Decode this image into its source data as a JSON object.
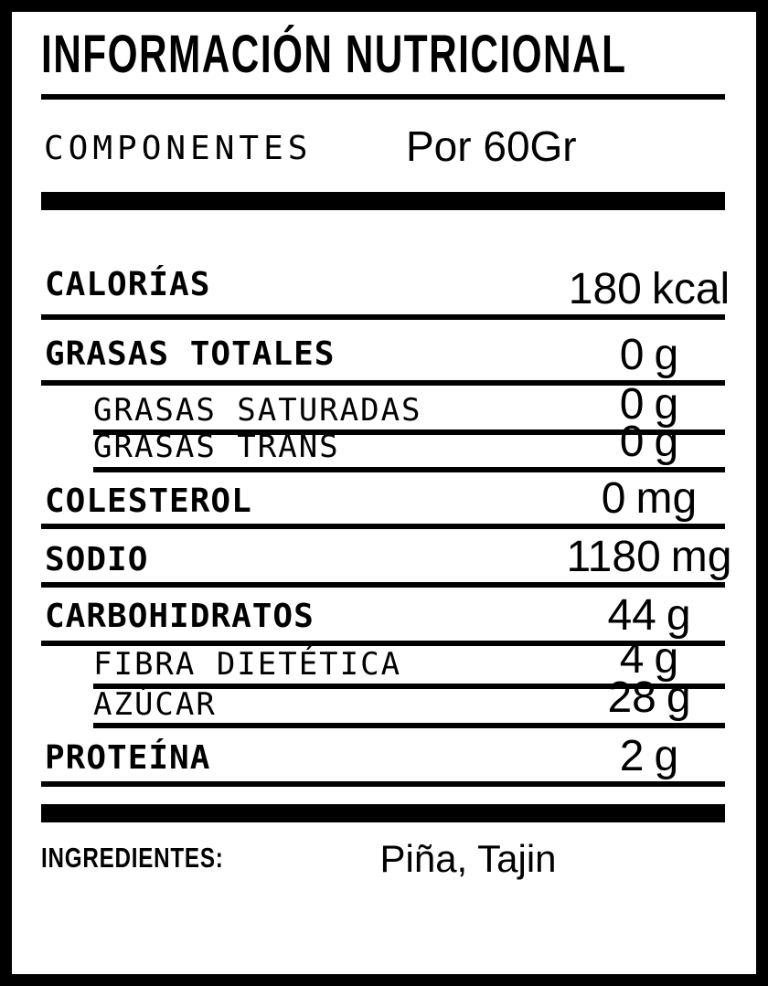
{
  "header": {
    "title": "INFORMACIÓN NUTRICIONAL"
  },
  "serving": {
    "components_label": "COMPONENTES",
    "per_label": "Por 60Gr"
  },
  "rows": [
    {
      "label": "CALORÍAS",
      "value": "180",
      "unit": "kcal",
      "indent": false
    },
    {
      "label": "GRASAS TOTALES",
      "value": "0",
      "unit": "g",
      "indent": false
    },
    {
      "label": "GRASAS SATURADAS",
      "value": "0",
      "unit": "g",
      "indent": true
    },
    {
      "label": "GRASAS TRANS",
      "value": "0",
      "unit": "g",
      "indent": true
    },
    {
      "label": "COLESTEROL",
      "value": "0",
      "unit": "mg",
      "indent": false
    },
    {
      "label": "SODIO",
      "value": "1180",
      "unit": "mg",
      "indent": false
    },
    {
      "label": "CARBOHIDRATOS",
      "value": "44",
      "unit": "g",
      "indent": false
    },
    {
      "label": "FIBRA DIETÉTICA",
      "value": "4",
      "unit": "g",
      "indent": true
    },
    {
      "label": "AZÚCAR",
      "value": "28",
      "unit": "g",
      "indent": true
    },
    {
      "label": "PROTEÍNA",
      "value": "2",
      "unit": "g",
      "indent": false
    }
  ],
  "ingredients": {
    "label": "INGREDIENTES:",
    "value": "Piña, Tajin"
  },
  "colors": {
    "ink": "#000000",
    "background": "#ffffff"
  }
}
